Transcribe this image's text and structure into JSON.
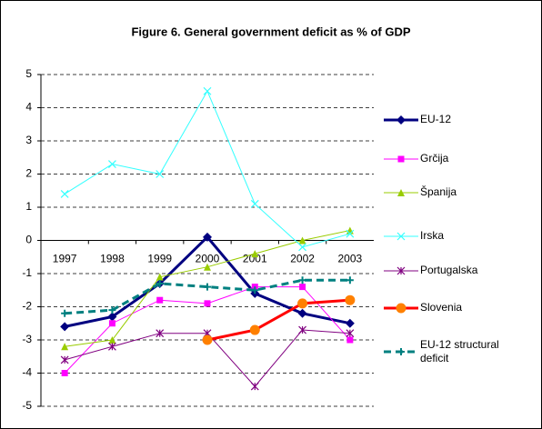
{
  "chart_data": {
    "type": "line",
    "title": "Figure 6. General government deficit as % of GDP",
    "categories": [
      "1997",
      "1998",
      "1999",
      "2000",
      "2001",
      "2002",
      "2003"
    ],
    "ylim": [
      -5,
      5
    ],
    "yticks": [
      -5,
      -4,
      -3,
      -2,
      -1,
      0,
      1,
      2,
      3,
      4,
      5
    ],
    "grid": true,
    "series": [
      {
        "name": "EU-12",
        "color": "#000080",
        "marker": "diamond",
        "line_width": 3,
        "dashed": false,
        "values": [
          -2.6,
          -2.3,
          -1.3,
          0.1,
          -1.6,
          -2.2,
          -2.5
        ]
      },
      {
        "name": "Grčija",
        "color": "#ff00ff",
        "marker": "square",
        "line_width": 1,
        "dashed": false,
        "values": [
          -4.0,
          -2.5,
          -1.8,
          -1.9,
          -1.4,
          -1.4,
          -3.0
        ]
      },
      {
        "name": "Španija",
        "color": "#99cc00",
        "marker": "triangle",
        "line_width": 1,
        "dashed": false,
        "values": [
          -3.2,
          -3.0,
          -1.1,
          -0.8,
          -0.4,
          0.0,
          0.3
        ]
      },
      {
        "name": "Irska",
        "color": "#33ffff",
        "marker": "x",
        "line_width": 1,
        "dashed": false,
        "values": [
          1.4,
          2.3,
          2.0,
          4.5,
          1.1,
          -0.2,
          0.2
        ]
      },
      {
        "name": "Portugalska",
        "color": "#800080",
        "marker": "star",
        "line_width": 1,
        "dashed": false,
        "values": [
          -3.6,
          -3.2,
          -2.8,
          -2.8,
          -4.4,
          -2.7,
          -2.8
        ]
      },
      {
        "name": "Slovenia",
        "color": "#ff0000",
        "marker": "circle",
        "line_width": 3,
        "dashed": false,
        "values": [
          null,
          null,
          null,
          -3.0,
          -2.7,
          -1.9,
          -1.8
        ]
      },
      {
        "name": "EU-12 structural deficit",
        "color": "#008080",
        "marker": "plus",
        "line_width": 3,
        "dashed": true,
        "values": [
          -2.2,
          -2.1,
          -1.3,
          -1.4,
          -1.5,
          -1.2,
          -1.2
        ]
      }
    ]
  }
}
